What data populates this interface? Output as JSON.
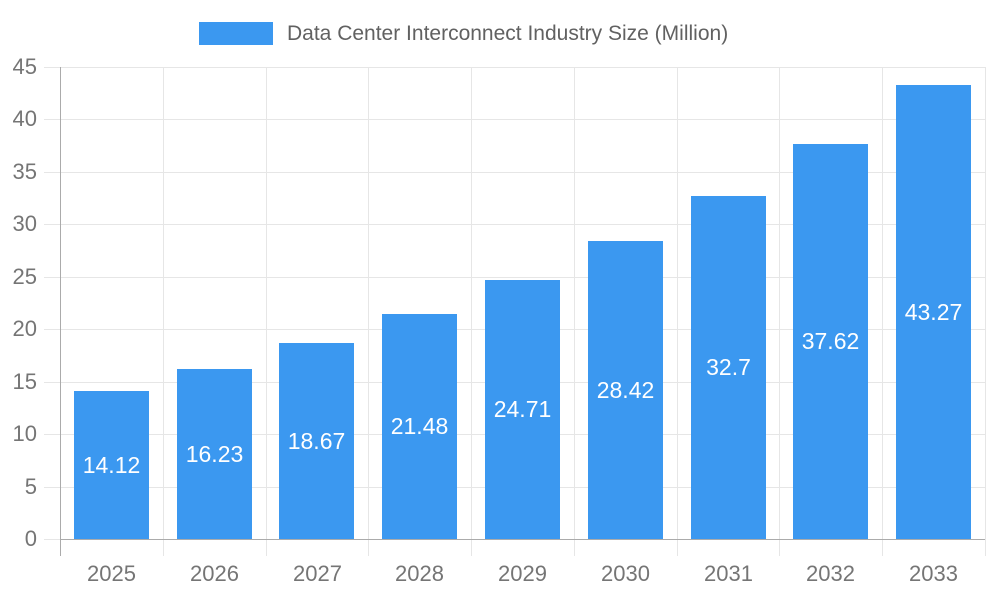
{
  "chart_data": {
    "type": "bar",
    "title": "Data Center Interconnect Industry Size (Million)",
    "categories": [
      "2025",
      "2026",
      "2027",
      "2028",
      "2029",
      "2030",
      "2031",
      "2032",
      "2033"
    ],
    "values": [
      14.12,
      16.23,
      18.67,
      21.48,
      24.71,
      28.42,
      32.7,
      37.62,
      43.27
    ],
    "ylim": [
      0,
      45
    ],
    "yticks": [
      0,
      5,
      10,
      15,
      20,
      25,
      30,
      35,
      40,
      45
    ],
    "grid": true,
    "legend_position": "top",
    "value_labels": "inside-center",
    "colors": {
      "bar": "#3B98F0",
      "value_label": "#FFFFFF",
      "axis_line": "#ABABAB",
      "gridline": "#E6E6E6",
      "tick_label": "#757575",
      "legend_text": "#616161"
    }
  }
}
